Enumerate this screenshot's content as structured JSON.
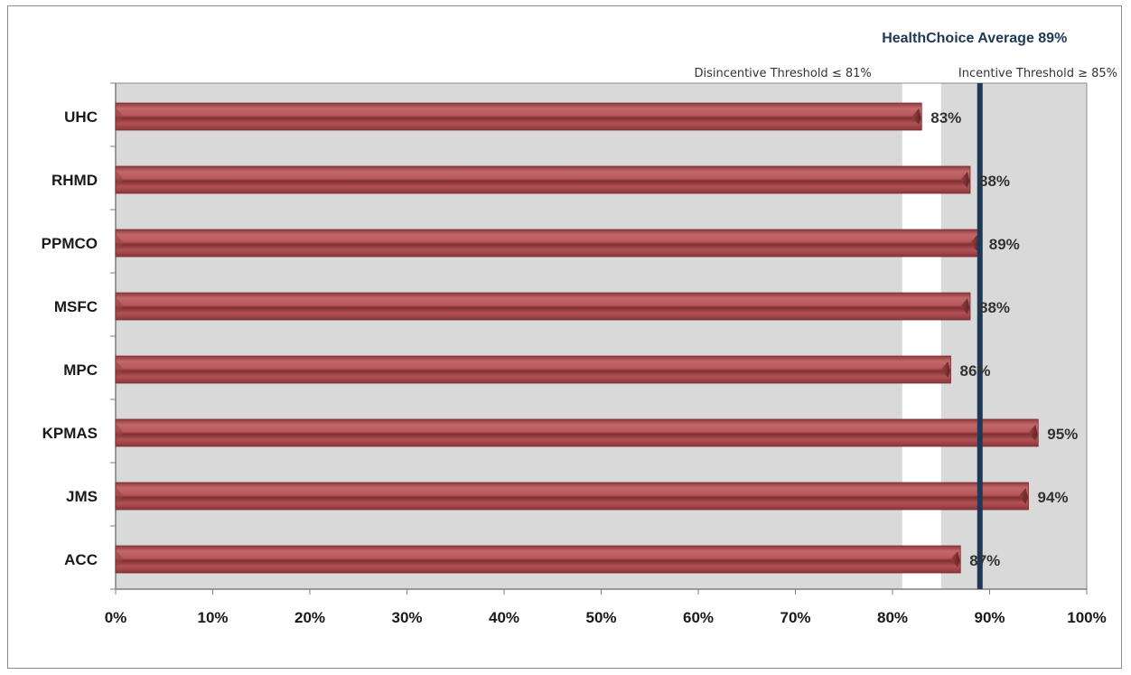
{
  "chart_data": {
    "type": "bar",
    "orientation": "horizontal",
    "categories": [
      "UHC",
      "RHMD",
      "PPMCO",
      "MSFC",
      "MPC",
      "KPMAS",
      "JMS",
      "ACC"
    ],
    "values": [
      83,
      88,
      89,
      88,
      86,
      95,
      94,
      87
    ],
    "value_labels": [
      "83%",
      "88%",
      "89%",
      "88%",
      "86%",
      "95%",
      "94%",
      "87%"
    ],
    "xlim": [
      0,
      100
    ],
    "x_ticks": [
      0,
      10,
      20,
      30,
      40,
      50,
      60,
      70,
      80,
      90,
      100
    ],
    "x_tick_labels": [
      "0%",
      "10%",
      "20%",
      "30%",
      "40%",
      "50%",
      "60%",
      "70%",
      "80%",
      "90%",
      "100%"
    ],
    "disincentive_threshold": {
      "value": 81,
      "label": "Disincentive Threshold ≤ 81%"
    },
    "incentive_threshold": {
      "value": 85,
      "label": "Incentive Threshold ≥ 85%"
    },
    "average": {
      "value": 89,
      "label": "HealthChoice Average 89%"
    },
    "grid": false,
    "colors": {
      "bar": "#b8575a",
      "bar_dark": "#8e3a3d",
      "band": "#d9d9d9",
      "average_line": "#1f3855"
    }
  }
}
